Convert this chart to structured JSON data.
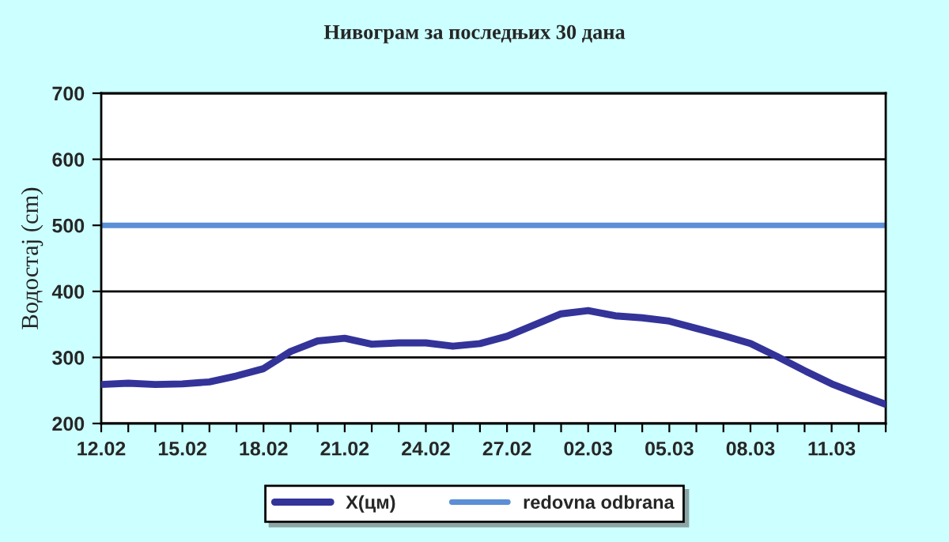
{
  "chart_data": {
    "type": "line",
    "title": "Нивограм за последњих 30 дана",
    "ylabel": "Водостај (cm)",
    "categories": [
      "12.02",
      null,
      null,
      "15.02",
      null,
      null,
      "18.02",
      null,
      null,
      "21.02",
      null,
      null,
      "24.02",
      null,
      null,
      "27.02",
      null,
      null,
      "02.03",
      null,
      null,
      "05.03",
      null,
      null,
      "08.03",
      null,
      null,
      "11.03",
      null,
      null
    ],
    "series": [
      {
        "name": "X(цм)",
        "color": "#333399",
        "values": [
          259,
          261,
          259,
          260,
          263,
          272,
          283,
          309,
          325,
          329,
          320,
          322,
          322,
          317,
          321,
          332,
          349,
          366,
          371,
          363,
          360,
          355,
          344,
          333,
          321,
          301,
          280,
          260,
          244,
          229
        ]
      }
    ],
    "ref_lines": [
      {
        "axis": "y",
        "value": 500,
        "label": "redovna odbrana",
        "color": "#5b8fd6"
      }
    ],
    "ylim": [
      200,
      700
    ],
    "yticks": [
      200,
      300,
      400,
      500,
      600,
      700
    ],
    "grid": "y",
    "legend": "bottom",
    "marker": "none",
    "line_style": "solid"
  }
}
